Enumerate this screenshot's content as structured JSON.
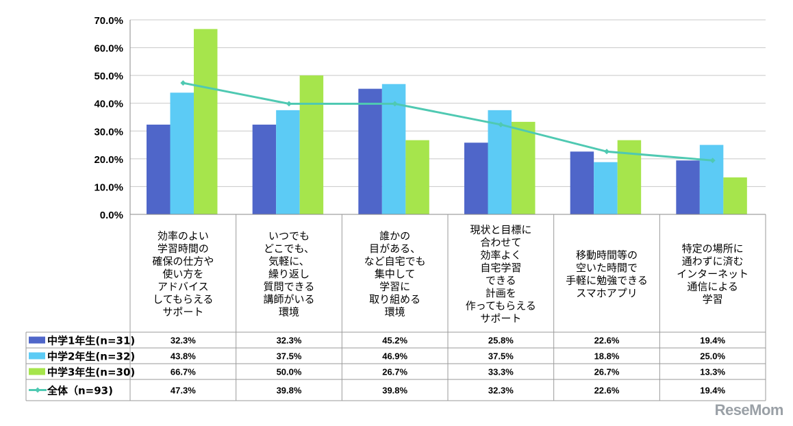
{
  "chart_data": {
    "type": "bar",
    "ylim": [
      0,
      70
    ],
    "yticks": [
      "0.0%",
      "10.0%",
      "20.0%",
      "30.0%",
      "40.0%",
      "50.0%",
      "60.0%",
      "70.0%"
    ],
    "grid": true,
    "legend_placement": "bottom-left (data table)",
    "categories": [
      [
        "効率のよい",
        "学習時間の",
        "確保の仕方や",
        "使い方を",
        "アドバイス",
        "してもらえる",
        "サポート"
      ],
      [
        "いつでも",
        "どこでも、",
        "気軽に、",
        "繰り返し",
        "質問できる",
        "講師がいる",
        "環境"
      ],
      [
        "誰かの",
        "目がある、",
        "など自宅でも",
        "集中して",
        "学習に",
        "取り組める",
        "環境"
      ],
      [
        "現状と目標に",
        "合わせて",
        "効率よく",
        "自宅学習",
        "できる",
        "計画を",
        "作ってもらえる",
        "サポート"
      ],
      [
        "移動時間等の",
        "空いた時間で",
        "手軽に勉強できる",
        "スマホアプリ"
      ],
      [
        "特定の場所に",
        "通わずに済む",
        "インターネット",
        "通信による",
        "学習"
      ]
    ],
    "series": [
      {
        "name": "中学1年生(n=31)",
        "type": "bar",
        "color": "#4F66C9",
        "values": [
          32.3,
          32.3,
          45.2,
          25.8,
          22.6,
          19.4
        ],
        "labels": [
          "32.3%",
          "32.3%",
          "45.2%",
          "25.8%",
          "22.6%",
          "19.4%"
        ]
      },
      {
        "name": "中学2年生(n=32)",
        "type": "bar",
        "color": "#5CCBF5",
        "values": [
          43.8,
          37.5,
          46.9,
          37.5,
          18.8,
          25.0
        ],
        "labels": [
          "43.8%",
          "37.5%",
          "46.9%",
          "37.5%",
          "18.8%",
          "25.0%"
        ]
      },
      {
        "name": "中学3年生(n=30)",
        "type": "bar",
        "color": "#A6E54C",
        "values": [
          66.7,
          50.0,
          26.7,
          33.3,
          26.7,
          13.3
        ],
        "labels": [
          "66.7%",
          "50.0%",
          "26.7%",
          "33.3%",
          "26.7%",
          "13.3%"
        ]
      },
      {
        "name": "全体（n=93)",
        "type": "line",
        "color": "#4FC9B2",
        "values": [
          47.3,
          39.8,
          39.8,
          32.3,
          22.6,
          19.4
        ],
        "labels": [
          "47.3%",
          "39.8%",
          "39.8%",
          "32.3%",
          "22.6%",
          "19.4%"
        ]
      }
    ]
  },
  "logo": "ReseMom"
}
